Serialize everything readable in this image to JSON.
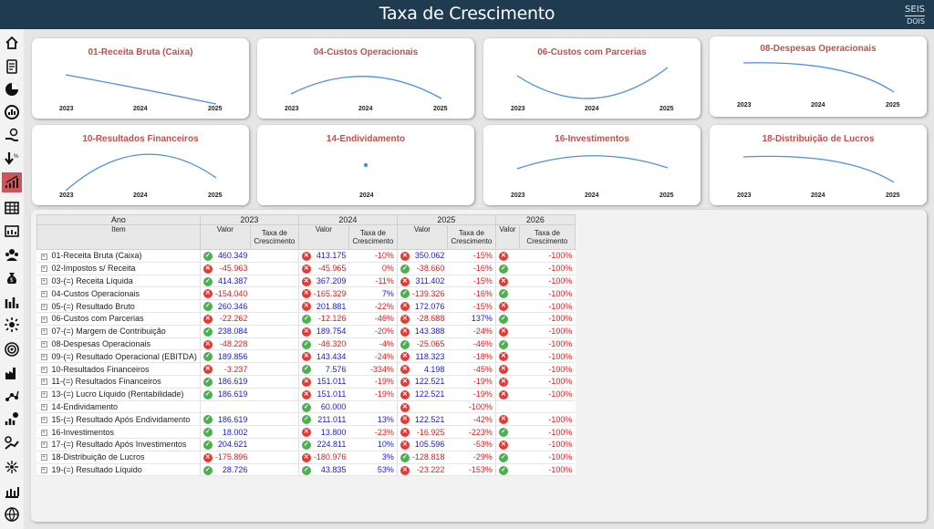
{
  "header": {
    "title": "Taxa de Crescimento",
    "logo_top": "SEIS",
    "logo_bottom": "DOIS"
  },
  "sidebar": {
    "items": [
      {
        "icon": "home-icon"
      },
      {
        "icon": "document-icon"
      },
      {
        "icon": "pie-chart-icon"
      },
      {
        "icon": "dashboard-gauge-icon"
      },
      {
        "icon": "hand-money-icon"
      },
      {
        "icon": "arrow-down-percent-icon"
      },
      {
        "icon": "growth-chart-icon",
        "active": true
      },
      {
        "icon": "table-icon"
      },
      {
        "icon": "calendar-icon"
      },
      {
        "icon": "people-group-icon"
      },
      {
        "icon": "money-bag-icon"
      },
      {
        "icon": "bar-chart-icon"
      },
      {
        "icon": "gear-sun-icon"
      },
      {
        "icon": "target-icon"
      },
      {
        "icon": "factory-icon"
      },
      {
        "icon": "network-chart-icon"
      },
      {
        "icon": "investment-icon"
      },
      {
        "icon": "percent-trend-icon"
      },
      {
        "icon": "sparkle-icon"
      },
      {
        "icon": "bank-chart-icon"
      },
      {
        "icon": "globe-icon"
      }
    ]
  },
  "cards": [
    {
      "title": "01-Receita Bruta (Caixa)",
      "years": [
        "2023",
        "2024",
        "2025"
      ]
    },
    {
      "title": "04-Custos Operacionais",
      "years": [
        "2023",
        "2024",
        "2025"
      ]
    },
    {
      "title": "06-Custos com Parcerias",
      "years": [
        "2023",
        "2024",
        "2025"
      ]
    },
    {
      "title": "08-Despesas Operacionais",
      "years": [
        "2023",
        "2024",
        "2025"
      ]
    },
    {
      "title": "10-Resultados Financeiros",
      "years": [
        "2023",
        "2024",
        "2025"
      ]
    },
    {
      "title": "14-Endividamento",
      "years": [
        "2024"
      ]
    },
    {
      "title": "16-Investimentos",
      "years": [
        "2023",
        "2024",
        "2025"
      ]
    },
    {
      "title": "18-Distribuição de Lucros",
      "years": [
        "2023",
        "2024",
        "2025"
      ]
    }
  ],
  "table": {
    "h_ano": "Ano",
    "h_item": "Item",
    "years": [
      "2023",
      "2024",
      "2025",
      "2026"
    ],
    "h_valor": "Valor",
    "h_taxa": "Taxa de Crescimento",
    "rows": [
      {
        "item": "01-Receita Bruta (Caixa)",
        "v": [
          "460.349",
          "413.175",
          "350.062",
          ""
        ],
        "r": [
          "",
          "-10%",
          "-15%",
          "-100%"
        ],
        "s": [
          "ok",
          "bad",
          "bad",
          "bad"
        ]
      },
      {
        "item": "02-Impostos s/ Receita",
        "v": [
          "-45.963",
          "-45.965",
          "-38.660",
          ""
        ],
        "r": [
          "",
          "0%",
          "-16%",
          "-100%"
        ],
        "s": [
          "bad",
          "bad",
          "ok",
          "ok"
        ]
      },
      {
        "item": "03-(=) Receita Líquida",
        "v": [
          "414.387",
          "367.209",
          "311.402",
          ""
        ],
        "r": [
          "",
          "-11%",
          "-15%",
          "-100%"
        ],
        "s": [
          "ok",
          "bad",
          "bad",
          "bad"
        ]
      },
      {
        "item": "04-Custos Operacionais",
        "v": [
          "-154.040",
          "-165.329",
          "-139.326",
          ""
        ],
        "r": [
          "",
          "7%",
          "-16%",
          "-100%"
        ],
        "s": [
          "bad",
          "bad",
          "ok",
          "ok"
        ]
      },
      {
        "item": "05-(=) Resultado Bruto",
        "v": [
          "260.346",
          "201.881",
          "172.076",
          ""
        ],
        "r": [
          "",
          "-22%",
          "-15%",
          "-100%"
        ],
        "s": [
          "ok",
          "bad",
          "bad",
          "bad"
        ]
      },
      {
        "item": "06-Custos com Parcerias",
        "v": [
          "-22.262",
          "-12.126",
          "-28.688",
          ""
        ],
        "r": [
          "",
          "-46%",
          "137%",
          "-100%"
        ],
        "s": [
          "bad",
          "ok",
          "bad",
          "ok"
        ]
      },
      {
        "item": "07-(=) Margem de Contribuição",
        "v": [
          "238.084",
          "189.754",
          "143.388",
          ""
        ],
        "r": [
          "",
          "-20%",
          "-24%",
          "-100%"
        ],
        "s": [
          "ok",
          "bad",
          "bad",
          "bad"
        ]
      },
      {
        "item": "08-Despesas Operacionais",
        "v": [
          "-48.228",
          "-46.320",
          "-25.065",
          ""
        ],
        "r": [
          "",
          "-4%",
          "-46%",
          "-100%"
        ],
        "s": [
          "bad",
          "ok",
          "ok",
          "ok"
        ]
      },
      {
        "item": "09-(=) Resultado Operacional (EBITDA)",
        "v": [
          "189.856",
          "143.434",
          "118.323",
          ""
        ],
        "r": [
          "",
          "-24%",
          "-18%",
          "-100%"
        ],
        "s": [
          "ok",
          "bad",
          "bad",
          "bad"
        ]
      },
      {
        "item": "10-Resultados Financeiros",
        "v": [
          "-3.237",
          "7.576",
          "4.198",
          ""
        ],
        "r": [
          "",
          "-334%",
          "-45%",
          "-100%"
        ],
        "s": [
          "bad",
          "ok",
          "bad",
          "bad"
        ]
      },
      {
        "item": "11-(=) Resultados Financeiros",
        "v": [
          "186.619",
          "151.011",
          "122.521",
          ""
        ],
        "r": [
          "",
          "-19%",
          "-19%",
          "-100%"
        ],
        "s": [
          "ok",
          "bad",
          "bad",
          "bad"
        ]
      },
      {
        "item": "13-(=) Lucro Líquido (Rentabilidade)",
        "v": [
          "186.619",
          "151.011",
          "122.521",
          ""
        ],
        "r": [
          "",
          "-19%",
          "-19%",
          "-100%"
        ],
        "s": [
          "ok",
          "bad",
          "bad",
          "bad"
        ]
      },
      {
        "item": "14-Endividamento",
        "v": [
          "",
          "60.000",
          "",
          ""
        ],
        "r": [
          "",
          "",
          "-100%",
          ""
        ],
        "s": [
          "",
          "ok",
          "bad",
          ""
        ]
      },
      {
        "item": "15-(=) Resultado Após Endividamento",
        "v": [
          "186.619",
          "211.011",
          "122.521",
          ""
        ],
        "r": [
          "",
          "13%",
          "-42%",
          "-100%"
        ],
        "s": [
          "ok",
          "ok",
          "bad",
          "bad"
        ]
      },
      {
        "item": "16-Investimentos",
        "v": [
          "18.002",
          "13.800",
          "-16.925",
          ""
        ],
        "r": [
          "",
          "-23%",
          "-223%",
          "-100%"
        ],
        "s": [
          "ok",
          "bad",
          "bad",
          "ok"
        ]
      },
      {
        "item": "17-(=) Resultado Após Investimentos",
        "v": [
          "204.621",
          "224.811",
          "105.596",
          ""
        ],
        "r": [
          "",
          "10%",
          "-53%",
          "-100%"
        ],
        "s": [
          "ok",
          "ok",
          "bad",
          "bad"
        ]
      },
      {
        "item": "18-Distribuição de Lucros",
        "v": [
          "-175.896",
          "-180.976",
          "-128.818",
          ""
        ],
        "r": [
          "",
          "3%",
          "-29%",
          "-100%"
        ],
        "s": [
          "bad",
          "bad",
          "ok",
          "ok"
        ]
      },
      {
        "item": "19-(=) Resultado Líquido",
        "v": [
          "28.726",
          "43.835",
          "-23.222",
          ""
        ],
        "r": [
          "",
          "53%",
          "-153%",
          "-100%"
        ],
        "s": [
          "ok",
          "ok",
          "bad",
          "ok"
        ]
      }
    ]
  },
  "colors": {
    "header_bg": "#1f3b50",
    "card_title": "#c0504d",
    "line": "#4a90e2",
    "positive": "#1a1adc",
    "negative": "#e02020",
    "ok": "#4caf50",
    "bad": "#e53935"
  }
}
